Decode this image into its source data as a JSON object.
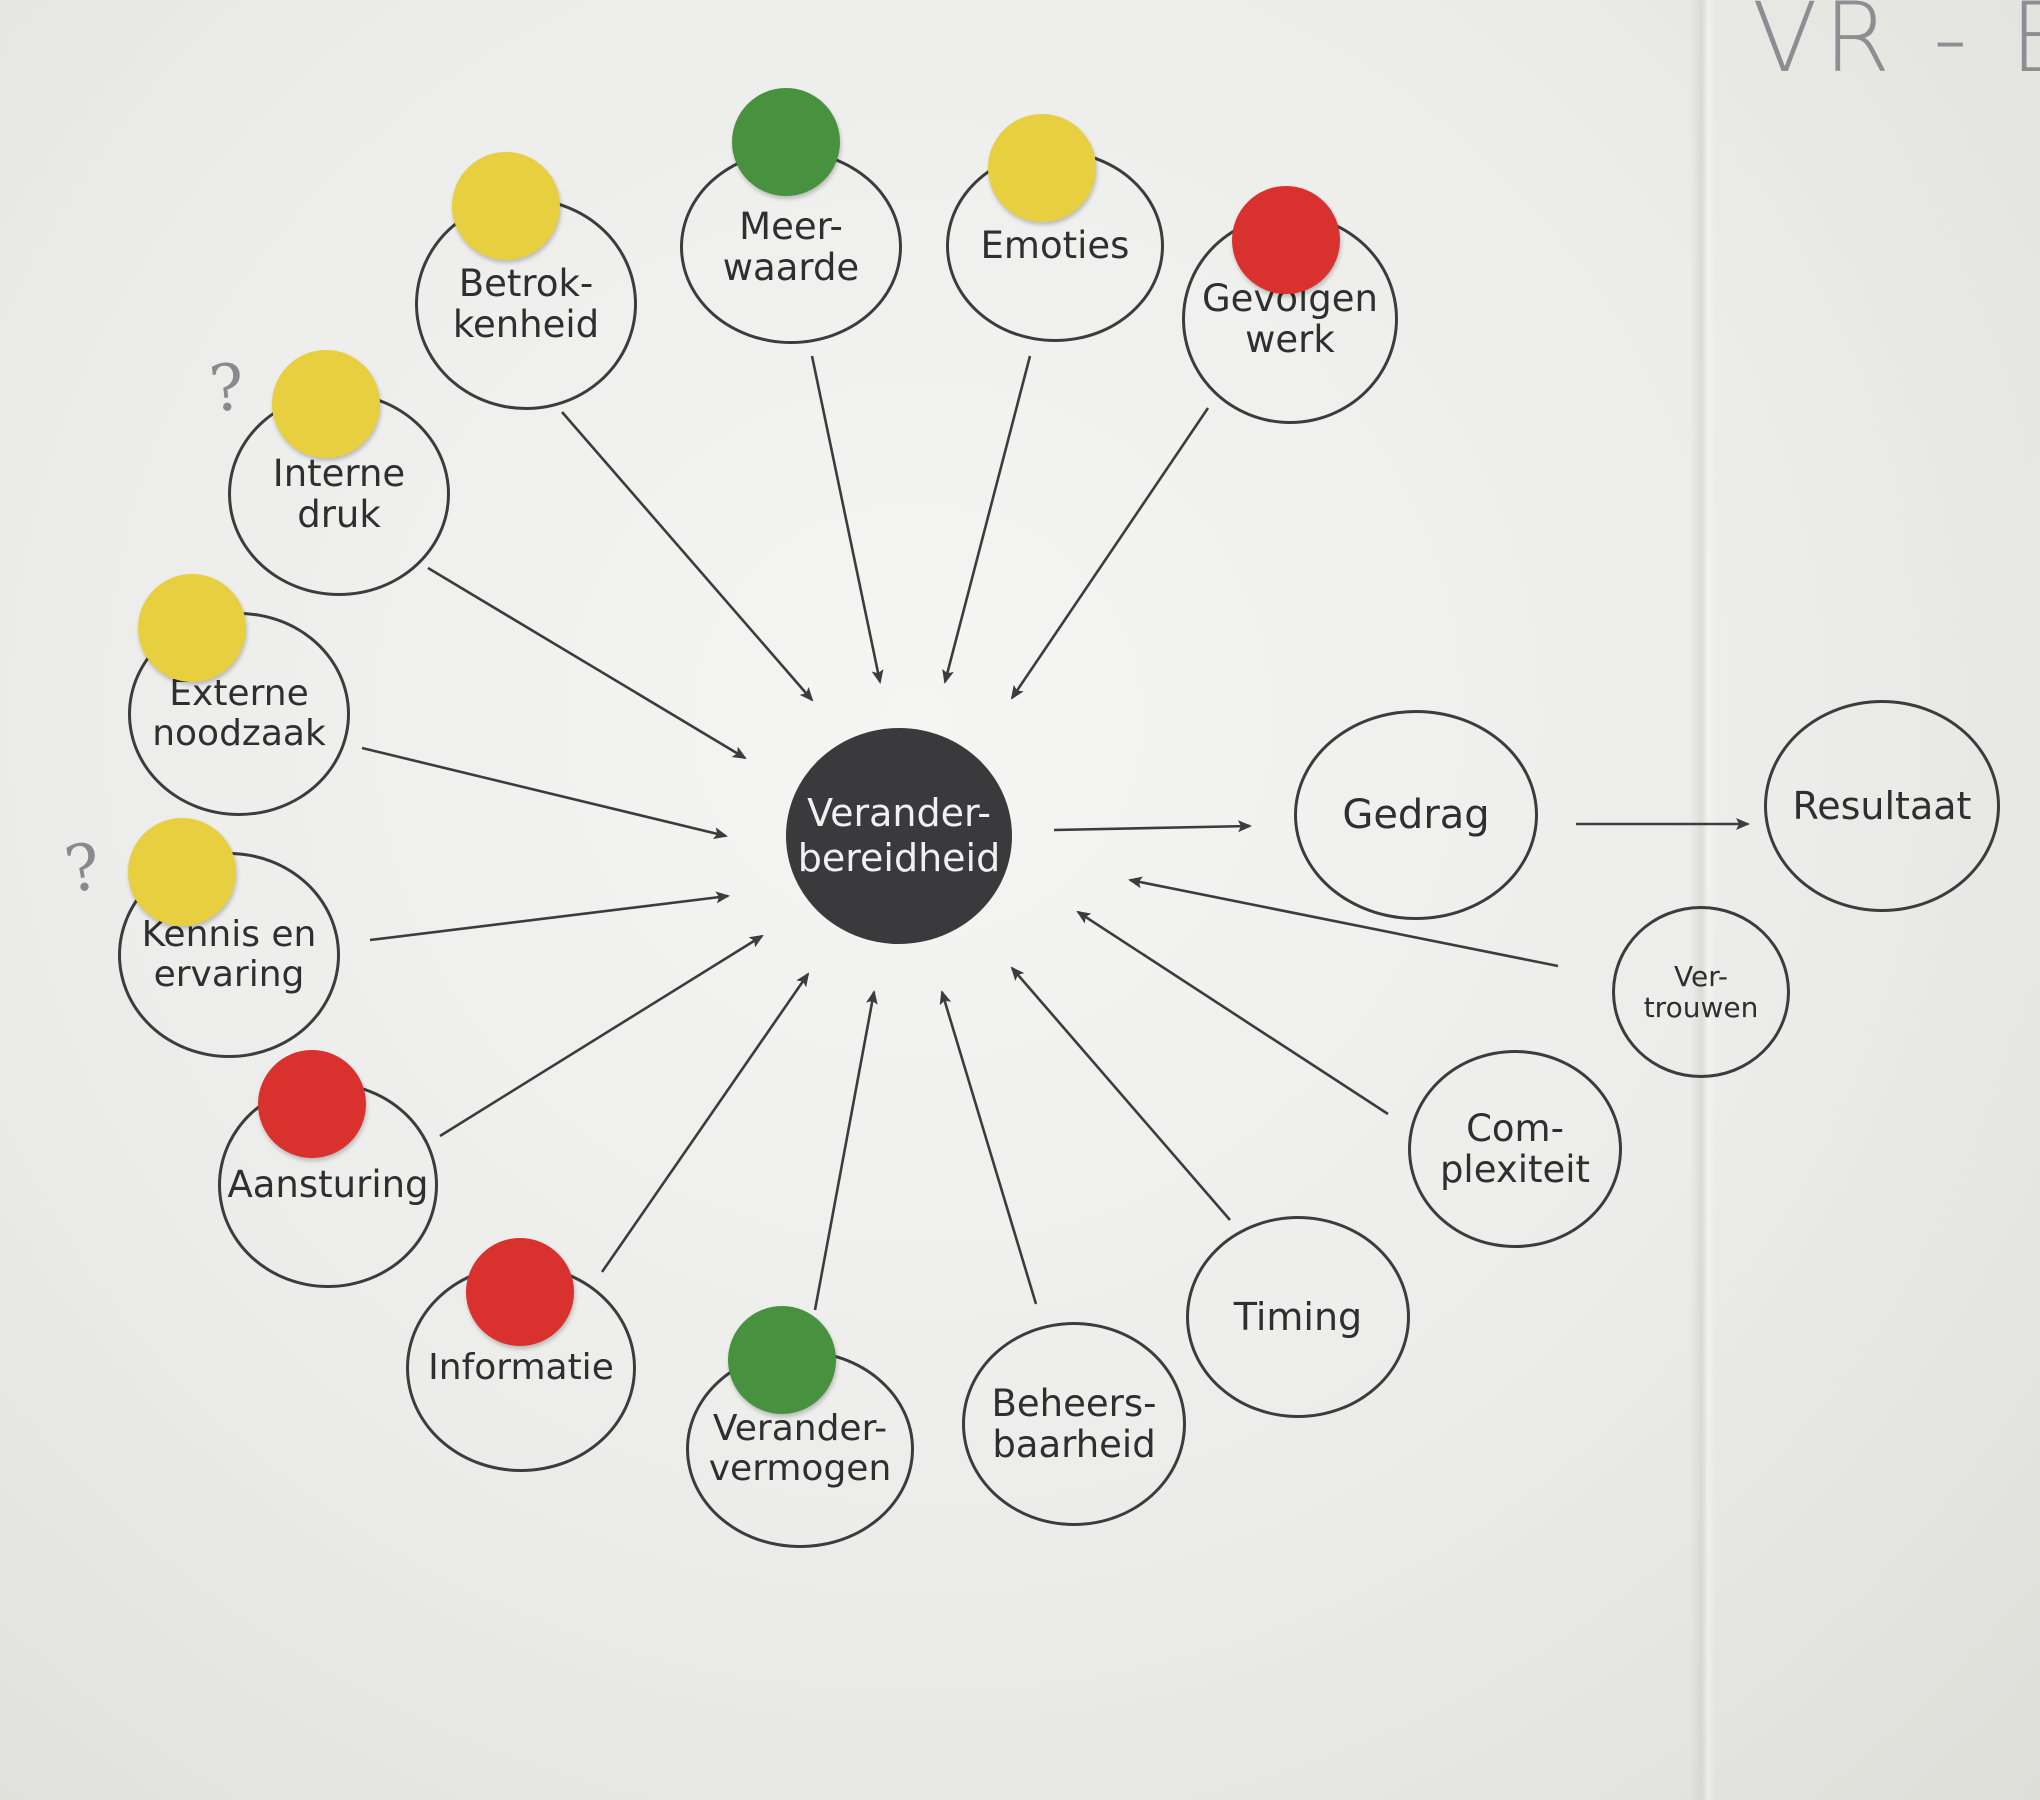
{
  "colors": {
    "yellow": "#e8cf3f",
    "green": "#47913f",
    "red": "#d9312e",
    "center_fill": "#3a3a3c",
    "line": "#3c3c3e"
  },
  "corner_text": "VR - B",
  "question_mark": "?",
  "center": {
    "label": "Verander-\nbereidheid"
  },
  "factors": {
    "betrokkenheid": {
      "label": "Betrok-\nkenheid",
      "dot": "yellow"
    },
    "meerwaarde": {
      "label": "Meer-\nwaarde",
      "dot": "green"
    },
    "emoties": {
      "label": "Emoties",
      "dot": "yellow"
    },
    "gevolgen_werk": {
      "label": "Gevolgen\nwerk",
      "dot": "red"
    },
    "interne_druk": {
      "label": "Interne\ndruk",
      "dot": "yellow"
    },
    "externe_noodzaak": {
      "label": "Externe\nnoodzaak",
      "dot": "yellow"
    },
    "kennis_ervaring": {
      "label": "Kennis en\nervaring",
      "dot": "yellow"
    },
    "aansturing": {
      "label": "Aansturing",
      "dot": "red"
    },
    "informatie": {
      "label": "Informatie",
      "dot": "red"
    },
    "verandervermogen": {
      "label": "Verander-\nvermogen",
      "dot": "green"
    },
    "beheersbaarheid": {
      "label": "Beheers-\nbaarheid"
    },
    "timing": {
      "label": "Timing"
    },
    "complexiteit": {
      "label": "Com-\nplexiteit"
    }
  },
  "outcomes": {
    "gedrag": {
      "label": "Gedrag"
    },
    "resultaat": {
      "label": "Resultaat"
    },
    "vertrouwen": {
      "label": "Ver-\ntrouwen"
    }
  }
}
